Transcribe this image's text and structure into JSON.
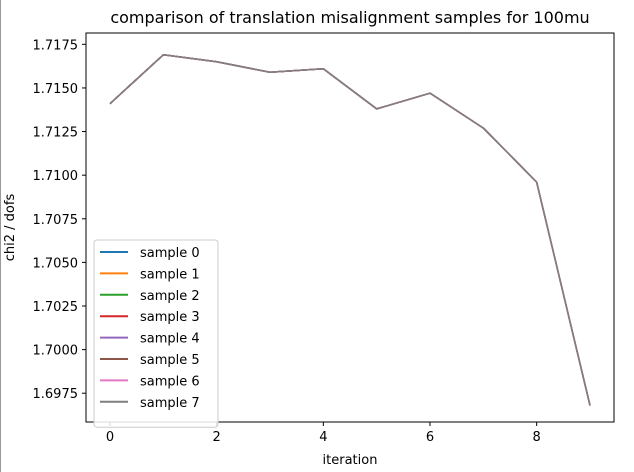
{
  "chart_data": {
    "type": "line",
    "title": "comparison of translation misalignment samples for 100mu",
    "xlabel": "iteration",
    "ylabel": "chi2 / dofs",
    "x": [
      0,
      1,
      2,
      3,
      4,
      5,
      6,
      7,
      8,
      9
    ],
    "xticks": [
      "0",
      "2",
      "4",
      "6",
      "8"
    ],
    "xtick_values": [
      0,
      2,
      4,
      6,
      8
    ],
    "yticks": [
      "1.6975",
      "1.7000",
      "1.7025",
      "1.7050",
      "1.7075",
      "1.7100",
      "1.7125",
      "1.7150",
      "1.7175"
    ],
    "ytick_values": [
      1.6975,
      1.7,
      1.7025,
      1.705,
      1.7075,
      1.71,
      1.7125,
      1.715,
      1.7175
    ],
    "xlim": [
      -0.45,
      9.45
    ],
    "ylim": [
      1.69585,
      1.71815
    ],
    "legend_position": "lower-left",
    "grid": false,
    "series": [
      {
        "name": "sample 0",
        "color": "#1f77b4",
        "values": [
          1.7141,
          1.7169,
          1.7165,
          1.7159,
          1.7161,
          1.7138,
          1.7147,
          1.7127,
          1.7096,
          1.6968
        ]
      },
      {
        "name": "sample 1",
        "color": "#ff7f0e",
        "values": [
          1.7141,
          1.7169,
          1.7165,
          1.7159,
          1.7161,
          1.7138,
          1.7147,
          1.7127,
          1.7096,
          1.6968
        ]
      },
      {
        "name": "sample 2",
        "color": "#2ca02c",
        "values": [
          1.7141,
          1.7169,
          1.7165,
          1.7159,
          1.7161,
          1.7138,
          1.7147,
          1.7127,
          1.7096,
          1.6968
        ]
      },
      {
        "name": "sample 3",
        "color": "#d62728",
        "values": [
          1.7141,
          1.7169,
          1.7165,
          1.7159,
          1.7161,
          1.7138,
          1.7147,
          1.7127,
          1.7096,
          1.6968
        ]
      },
      {
        "name": "sample 4",
        "color": "#9467bd",
        "values": [
          1.7141,
          1.7169,
          1.7165,
          1.7159,
          1.7161,
          1.7138,
          1.7147,
          1.7127,
          1.7096,
          1.6968
        ]
      },
      {
        "name": "sample 5",
        "color": "#8c564b",
        "values": [
          1.7141,
          1.7169,
          1.7165,
          1.7159,
          1.7161,
          1.7138,
          1.7147,
          1.7127,
          1.7096,
          1.6968
        ]
      },
      {
        "name": "sample 6",
        "color": "#e377c2",
        "values": [
          1.7141,
          1.7169,
          1.7165,
          1.7159,
          1.7161,
          1.7138,
          1.7147,
          1.7127,
          1.7096,
          1.6968
        ]
      },
      {
        "name": "sample 7",
        "color": "#7f7f7f",
        "values": [
          1.7141,
          1.7169,
          1.7165,
          1.7159,
          1.7161,
          1.7138,
          1.7147,
          1.7127,
          1.7096,
          1.6968
        ]
      }
    ]
  }
}
